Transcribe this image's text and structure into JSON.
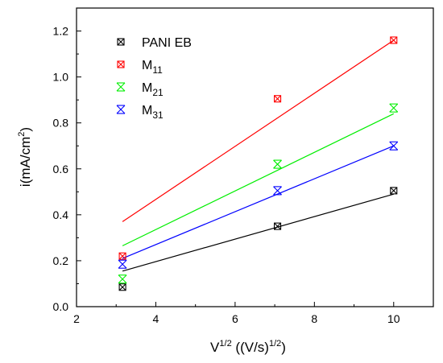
{
  "chart_data": {
    "type": "scatter",
    "xlabel": {
      "base": "V",
      "sup1": "1/2",
      "rest": " ((V/s)",
      "sup2": "1/2",
      "end": ")"
    },
    "ylabel": {
      "base": "i(mA/cm",
      "sup": "2",
      "end": ")"
    },
    "xlim": [
      2,
      11
    ],
    "ylim": [
      0,
      1.3
    ],
    "xticks": [
      2,
      4,
      6,
      8,
      10
    ],
    "yticks": [
      0.0,
      0.2,
      0.4,
      0.6,
      0.8,
      1.0,
      1.2
    ],
    "xtick_labels": [
      "2",
      "4",
      "6",
      "8",
      "10"
    ],
    "ytick_labels": [
      "0.0",
      "0.2",
      "0.4",
      "0.6",
      "0.8",
      "1.0",
      "1.2"
    ],
    "grid": false,
    "legend_position": "top-left",
    "series": [
      {
        "name": "PANI EB",
        "name_base": "PANI EB",
        "name_sub": "",
        "color": "#000000",
        "marker": "square-x",
        "x": [
          3.16,
          7.07,
          10.0
        ],
        "y": [
          0.085,
          0.35,
          0.505
        ],
        "fit": {
          "x": [
            3.16,
            10.0
          ],
          "y": [
            0.155,
            0.49
          ]
        }
      },
      {
        "name": "M11",
        "name_base": "M",
        "name_sub": "11",
        "color": "#ff0000",
        "marker": "square-x",
        "x": [
          3.16,
          7.07,
          10.0
        ],
        "y": [
          0.22,
          0.905,
          1.16
        ],
        "fit": {
          "x": [
            3.16,
            10.0
          ],
          "y": [
            0.37,
            1.16
          ]
        }
      },
      {
        "name": "M21",
        "name_base": "M",
        "name_sub": "21",
        "color": "#00ee00",
        "marker": "hourglass-x",
        "x": [
          3.16,
          7.07,
          10.0
        ],
        "y": [
          0.12,
          0.62,
          0.865
        ],
        "fit": {
          "x": [
            3.16,
            10.0
          ],
          "y": [
            0.265,
            0.84
          ]
        }
      },
      {
        "name": "M31",
        "name_base": "M",
        "name_sub": "31",
        "color": "#0000ff",
        "marker": "hourglass-x",
        "x": [
          3.16,
          7.07,
          10.0
        ],
        "y": [
          0.185,
          0.505,
          0.7
        ],
        "fit": {
          "x": [
            3.16,
            10.0
          ],
          "y": [
            0.21,
            0.7
          ]
        }
      }
    ]
  }
}
